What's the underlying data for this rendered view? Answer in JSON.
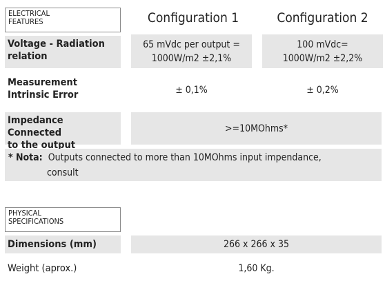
{
  "electrical": {
    "section_title_line1": "ELECTRICAL",
    "section_title_line2": "FEATURES",
    "col1_header": "Configuration 1",
    "col2_header": "Configuration 2",
    "rows": [
      {
        "label_line1": "Voltage - Radiation",
        "label_line2": "relation",
        "config1_line1": "65 mVdc per output =",
        "config1_line2": "1000W/m2 ±2,1%",
        "config2_line1": "100 mVdc=",
        "config2_line2": "1000W/m2 ±2,2%"
      },
      {
        "label_line1": "Measurement",
        "label_line2": "Intrinsic Error",
        "config1": "± 0,1%",
        "config2": "± 0,2%"
      },
      {
        "label_line1": "Impedance Connected",
        "label_line2": "to the output",
        "value": ">=10MOhms*"
      }
    ],
    "note_prefix": "* Nota:",
    "note_line1": "Outputs connected to more than 10MOhms input impendance,",
    "note_line2": "consult"
  },
  "physical": {
    "section_title_line1": "PHYSICAL",
    "section_title_line2": "SPECIFICATIONS",
    "rows": [
      {
        "label": "Dimensions (mm)",
        "value": "266 x 266 x 35"
      },
      {
        "label": "Weight (aprox.)",
        "value": "1,60 Kg."
      }
    ]
  }
}
